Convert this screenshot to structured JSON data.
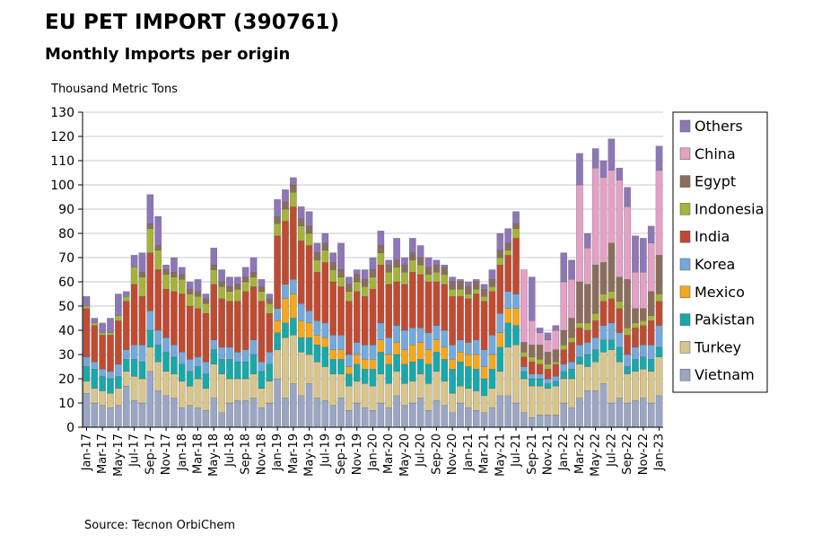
{
  "chart_data": {
    "type": "bar",
    "stacked": true,
    "title": "EU PET IMPORT (390761)",
    "subtitle": "Monthly Imports per origin",
    "ylabel": "Thousand Metric Tons",
    "source": "Source: Tecnon OrbiChem",
    "ylim": [
      0,
      130
    ],
    "yticks": [
      "0",
      "10",
      "20",
      "30",
      "40",
      "50",
      "60",
      "70",
      "80",
      "90",
      "100",
      "110",
      "120",
      "130"
    ],
    "legend_position": "right",
    "grid": true,
    "categories": [
      "Jan-17",
      "Feb-17",
      "Mar-17",
      "Apr-17",
      "May-17",
      "Jun-17",
      "Jul-17",
      "Aug-17",
      "Sep-17",
      "Oct-17",
      "Nov-17",
      "Dec-17",
      "Jan-18",
      "Feb-18",
      "Mar-18",
      "Apr-18",
      "May-18",
      "Jun-18",
      "Jul-18",
      "Aug-18",
      "Sep-18",
      "Oct-18",
      "Nov-18",
      "Dec-18",
      "Jan-19",
      "Feb-19",
      "Mar-19",
      "Apr-19",
      "May-19",
      "Jun-19",
      "Jul-19",
      "Aug-19",
      "Sep-19",
      "Oct-19",
      "Nov-19",
      "Dec-19",
      "Jan-20",
      "Feb-20",
      "Mar-20",
      "Apr-20",
      "May-20",
      "Jun-20",
      "Jul-20",
      "Aug-20",
      "Sep-20",
      "Oct-20",
      "Nov-20",
      "Dec-20",
      "Jan-21",
      "Feb-21",
      "Mar-21",
      "Apr-21",
      "May-21",
      "Jun-21",
      "Jul-21",
      "Aug-21",
      "Sep-21",
      "Oct-21",
      "Nov-21",
      "Dec-21",
      "Jan-22",
      "Feb-22",
      "Mar-22",
      "Apr-22",
      "May-22",
      "Jun-22",
      "Jul-22",
      "Aug-22",
      "Sep-22",
      "Oct-22",
      "Nov-22",
      "Dec-22",
      "Jan-23"
    ],
    "xtick_labels": [
      "Jan-17",
      "Mar-17",
      "May-17",
      "Jul-17",
      "Sep-17",
      "Nov-17",
      "Jan-18",
      "Mar-18",
      "May-18",
      "Jul-18",
      "Sep-18",
      "Nov-18",
      "Jan-19",
      "Mar-19",
      "May-19",
      "Jul-19",
      "Sep-19",
      "Nov-19",
      "Jan-20",
      "Mar-20",
      "May-20",
      "Jul-20",
      "Sep-20",
      "Nov-20",
      "Jan-21",
      "Mar-21",
      "May-21",
      "Jul-21",
      "Sep-21",
      "Nov-21",
      "Jan-22",
      "Mar-22",
      "May-22",
      "Jul-22",
      "Sep-22",
      "Nov-22",
      "Jan-23"
    ],
    "series": [
      {
        "name": "Vietnam",
        "color": "#9aa6c3",
        "values": [
          14,
          10,
          9,
          8,
          9,
          17,
          11,
          10,
          23,
          15,
          13,
          12,
          8,
          9,
          8,
          7,
          12,
          6,
          10,
          11,
          11,
          12,
          8,
          10,
          20,
          12,
          18,
          13,
          18,
          12,
          11,
          9,
          12,
          7,
          10,
          8,
          7,
          10,
          8,
          13,
          9,
          10,
          12,
          7,
          11,
          9,
          6,
          10,
          8,
          7,
          6,
          8,
          13,
          13,
          10,
          6,
          4,
          5,
          5,
          5,
          10,
          8,
          12,
          15,
          15,
          18,
          10,
          12,
          10,
          11,
          12,
          10,
          13
        ]
      },
      {
        "name": "Turkey",
        "color": "#d8c58c",
        "values": [
          5,
          6,
          6,
          6,
          7,
          6,
          10,
          10,
          10,
          12,
          10,
          10,
          11,
          8,
          12,
          9,
          14,
          16,
          10,
          9,
          9,
          10,
          8,
          9,
          12,
          25,
          20,
          18,
          12,
          15,
          14,
          13,
          10,
          10,
          9,
          10,
          10,
          12,
          10,
          10,
          9,
          9,
          10,
          11,
          12,
          10,
          8,
          7,
          8,
          8,
          7,
          8,
          10,
          20,
          24,
          14,
          13,
          12,
          11,
          12,
          10,
          12,
          14,
          10,
          12,
          13,
          22,
          15,
          12,
          12,
          12,
          13,
          16
        ]
      },
      {
        "name": "Pakistan",
        "color": "#1aa8a8",
        "values": [
          6,
          8,
          6,
          6,
          5,
          5,
          7,
          7,
          7,
          7,
          8,
          7,
          7,
          6,
          5,
          6,
          6,
          6,
          8,
          7,
          7,
          8,
          7,
          7,
          7,
          6,
          7,
          6,
          7,
          7,
          8,
          6,
          6,
          5,
          7,
          6,
          7,
          9,
          8,
          7,
          8,
          8,
          6,
          8,
          8,
          9,
          10,
          10,
          9,
          9,
          7,
          8,
          10,
          10,
          8,
          3,
          3,
          3,
          2,
          2,
          3,
          4,
          3,
          5,
          5,
          5,
          4,
          6,
          3,
          5,
          5,
          5,
          4
        ]
      },
      {
        "name": "Mexico",
        "color": "#f5a81e",
        "values": [
          0,
          0,
          0,
          0,
          0,
          0,
          0,
          0,
          0,
          0,
          0,
          0,
          0,
          0,
          0,
          0,
          0,
          0,
          0,
          0,
          0,
          0,
          0,
          0,
          5,
          10,
          10,
          7,
          6,
          4,
          4,
          4,
          4,
          3,
          4,
          4,
          4,
          5,
          4,
          5,
          6,
          7,
          7,
          6,
          5,
          5,
          4,
          4,
          5,
          6,
          5,
          6,
          6,
          6,
          7,
          0,
          0,
          0,
          0,
          0,
          0,
          0,
          0,
          0,
          0,
          0,
          0,
          0,
          0,
          0,
          0,
          0,
          0
        ]
      },
      {
        "name": "Korea",
        "color": "#74a9dc",
        "values": [
          4,
          3,
          3,
          3,
          5,
          4,
          6,
          7,
          8,
          6,
          6,
          5,
          5,
          5,
          4,
          5,
          4,
          5,
          5,
          4,
          5,
          6,
          4,
          5,
          5,
          6,
          6,
          7,
          5,
          6,
          6,
          6,
          6,
          5,
          5,
          6,
          6,
          7,
          7,
          7,
          8,
          7,
          6,
          7,
          6,
          7,
          6,
          5,
          5,
          6,
          7,
          8,
          8,
          7,
          6,
          2,
          2,
          2,
          2,
          2,
          3,
          3,
          5,
          5,
          5,
          6,
          7,
          6,
          5,
          5,
          5,
          6,
          9
        ]
      },
      {
        "name": "India",
        "color": "#c04b33",
        "values": [
          20,
          15,
          14,
          15,
          18,
          20,
          25,
          20,
          24,
          25,
          20,
          22,
          24,
          22,
          20,
          20,
          23,
          20,
          19,
          21,
          24,
          22,
          25,
          16,
          30,
          26,
          30,
          26,
          27,
          20,
          25,
          22,
          20,
          22,
          21,
          20,
          23,
          24,
          22,
          18,
          19,
          23,
          22,
          21,
          18,
          19,
          20,
          18,
          18,
          19,
          20,
          18,
          20,
          15,
          23,
          4,
          5,
          4,
          4,
          5,
          6,
          8,
          7,
          5,
          7,
          10,
          10,
          10,
          8,
          8,
          8,
          10,
          10
        ]
      },
      {
        "name": "Indonesia",
        "color": "#a6b33a",
        "values": [
          1,
          1,
          1,
          1,
          2,
          2,
          7,
          8,
          10,
          8,
          6,
          6,
          6,
          5,
          5,
          4,
          6,
          5,
          4,
          5,
          4,
          4,
          4,
          4,
          5,
          5,
          6,
          6,
          5,
          5,
          5,
          5,
          4,
          4,
          4,
          4,
          5,
          5,
          5,
          6,
          5,
          5,
          4,
          3,
          4,
          4,
          3,
          3,
          2,
          2,
          2,
          2,
          3,
          2,
          4,
          2,
          2,
          2,
          2,
          1,
          2,
          2,
          2,
          3,
          3,
          3,
          3,
          3,
          3,
          2,
          2,
          2,
          3
        ]
      },
      {
        "name": "Egypt",
        "color": "#8a6e5c",
        "values": [
          0,
          0,
          0,
          0,
          0,
          0,
          0,
          2,
          2,
          2,
          2,
          2,
          2,
          2,
          2,
          2,
          2,
          2,
          2,
          2,
          2,
          2,
          2,
          2,
          3,
          3,
          3,
          3,
          3,
          3,
          3,
          3,
          3,
          3,
          3,
          3,
          3,
          3,
          3,
          3,
          3,
          3,
          3,
          3,
          3,
          3,
          3,
          3,
          3,
          3,
          3,
          3,
          3,
          3,
          2,
          4,
          5,
          6,
          5,
          5,
          6,
          8,
          17,
          16,
          20,
          13,
          20,
          10,
          20,
          6,
          5,
          10,
          16
        ]
      },
      {
        "name": "China",
        "color": "#e2a1c5",
        "values": [
          0,
          0,
          0,
          0,
          0,
          0,
          0,
          0,
          0,
          0,
          0,
          0,
          0,
          0,
          0,
          0,
          0,
          0,
          0,
          0,
          0,
          0,
          0,
          0,
          0,
          0,
          0,
          0,
          0,
          0,
          0,
          0,
          0,
          0,
          0,
          0,
          0,
          0,
          0,
          0,
          0,
          0,
          0,
          0,
          0,
          0,
          0,
          0,
          0,
          0,
          0,
          0,
          0,
          0,
          0,
          30,
          10,
          5,
          5,
          8,
          20,
          16,
          40,
          15,
          40,
          35,
          30,
          40,
          30,
          15,
          15,
          20,
          35
        ]
      },
      {
        "name": "Others",
        "color": "#8d77b7",
        "values": [
          4,
          2,
          4,
          6,
          9,
          2,
          5,
          8,
          12,
          12,
          2,
          6,
          3,
          3,
          5,
          2,
          7,
          5,
          4,
          3,
          4,
          6,
          3,
          2,
          7,
          5,
          3,
          5,
          6,
          4,
          4,
          4,
          11,
          3,
          2,
          4,
          5,
          6,
          2,
          9,
          3,
          6,
          5,
          4,
          2,
          1,
          2,
          1,
          2,
          1,
          2,
          4,
          7,
          6,
          5,
          0,
          18,
          2,
          3,
          2,
          12,
          8,
          13,
          6,
          8,
          7,
          13,
          5,
          8,
          15,
          14,
          7,
          10
        ]
      }
    ]
  }
}
